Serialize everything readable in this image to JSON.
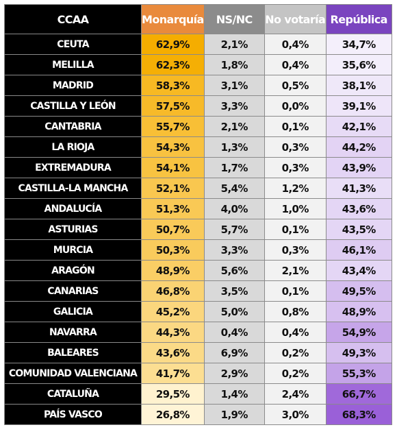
{
  "chart_data": {
    "type": "table",
    "columns": [
      "CCAA",
      "Monarquía",
      "NS/NC",
      "No votaría",
      "República"
    ],
    "rows": [
      {
        "ccaa": "CEUTA",
        "monarquia": "62,9%",
        "nsnc": "2,1%",
        "no_votaria": "0,4%",
        "republica": "34,7%"
      },
      {
        "ccaa": "MELILLA",
        "monarquia": "62,3%",
        "nsnc": "1,8%",
        "no_votaria": "0,4%",
        "republica": "35,6%"
      },
      {
        "ccaa": "MADRID",
        "monarquia": "58,3%",
        "nsnc": "3,1%",
        "no_votaria": "0,5%",
        "republica": "38,1%"
      },
      {
        "ccaa": "CASTILLA Y LEÓN",
        "monarquia": "57,5%",
        "nsnc": "3,3%",
        "no_votaria": "0,0%",
        "republica": "39,1%"
      },
      {
        "ccaa": "CANTABRIA",
        "monarquia": "55,7%",
        "nsnc": "2,1%",
        "no_votaria": "0,1%",
        "republica": "42,1%"
      },
      {
        "ccaa": "LA RIOJA",
        "monarquia": "54,3%",
        "nsnc": "1,3%",
        "no_votaria": "0,3%",
        "republica": "44,2%"
      },
      {
        "ccaa": "EXTREMADURA",
        "monarquia": "54,1%",
        "nsnc": "1,7%",
        "no_votaria": "0,3%",
        "republica": "43,9%"
      },
      {
        "ccaa": "CASTILLA-LA MANCHA",
        "monarquia": "52,1%",
        "nsnc": "5,4%",
        "no_votaria": "1,2%",
        "republica": "41,3%"
      },
      {
        "ccaa": "ANDALUCÍA",
        "monarquia": "51,3%",
        "nsnc": "4,0%",
        "no_votaria": "1,0%",
        "republica": "43,6%"
      },
      {
        "ccaa": "ASTURIAS",
        "monarquia": "50,7%",
        "nsnc": "5,7%",
        "no_votaria": "0,1%",
        "republica": "43,5%"
      },
      {
        "ccaa": "MURCIA",
        "monarquia": "50,3%",
        "nsnc": "3,3%",
        "no_votaria": "0,3%",
        "republica": "46,1%"
      },
      {
        "ccaa": "ARAGÓN",
        "monarquia": "48,9%",
        "nsnc": "5,6%",
        "no_votaria": "2,1%",
        "republica": "43,4%"
      },
      {
        "ccaa": "CANARIAS",
        "monarquia": "46,8%",
        "nsnc": "3,5%",
        "no_votaria": "0,1%",
        "republica": "49,5%"
      },
      {
        "ccaa": "GALICIA",
        "monarquia": "45,2%",
        "nsnc": "5,0%",
        "no_votaria": "0,8%",
        "republica": "48,9%"
      },
      {
        "ccaa": "NAVARRA",
        "monarquia": "44,3%",
        "nsnc": "0,4%",
        "no_votaria": "0,4%",
        "republica": "54,9%"
      },
      {
        "ccaa": "BALEARES",
        "monarquia": "43,6%",
        "nsnc": "6,9%",
        "no_votaria": "0,2%",
        "republica": "49,3%"
      },
      {
        "ccaa": "COMUNIDAD VALENCIANA",
        "monarquia": "41,7%",
        "nsnc": "2,9%",
        "no_votaria": "0,2%",
        "republica": "55,3%"
      },
      {
        "ccaa": "CATALUÑA",
        "monarquia": "29,5%",
        "nsnc": "1,4%",
        "no_votaria": "2,4%",
        "republica": "66,7%"
      },
      {
        "ccaa": "PAÍS VASCO",
        "monarquia": "26,8%",
        "nsnc": "1,9%",
        "no_votaria": "3,0%",
        "republica": "68,3%"
      }
    ]
  },
  "colors": {
    "monarquia_header": "#e98a3c",
    "nsnc_header": "#8c8c8c",
    "no_votaria_header": "#c4c4c4",
    "republica_header": "#7a44bf",
    "monarquia_low": "#fff4d6",
    "monarquia_high": "#f5ad00",
    "republica_low": "#f4effb",
    "republica_high": "#9a60d8"
  }
}
